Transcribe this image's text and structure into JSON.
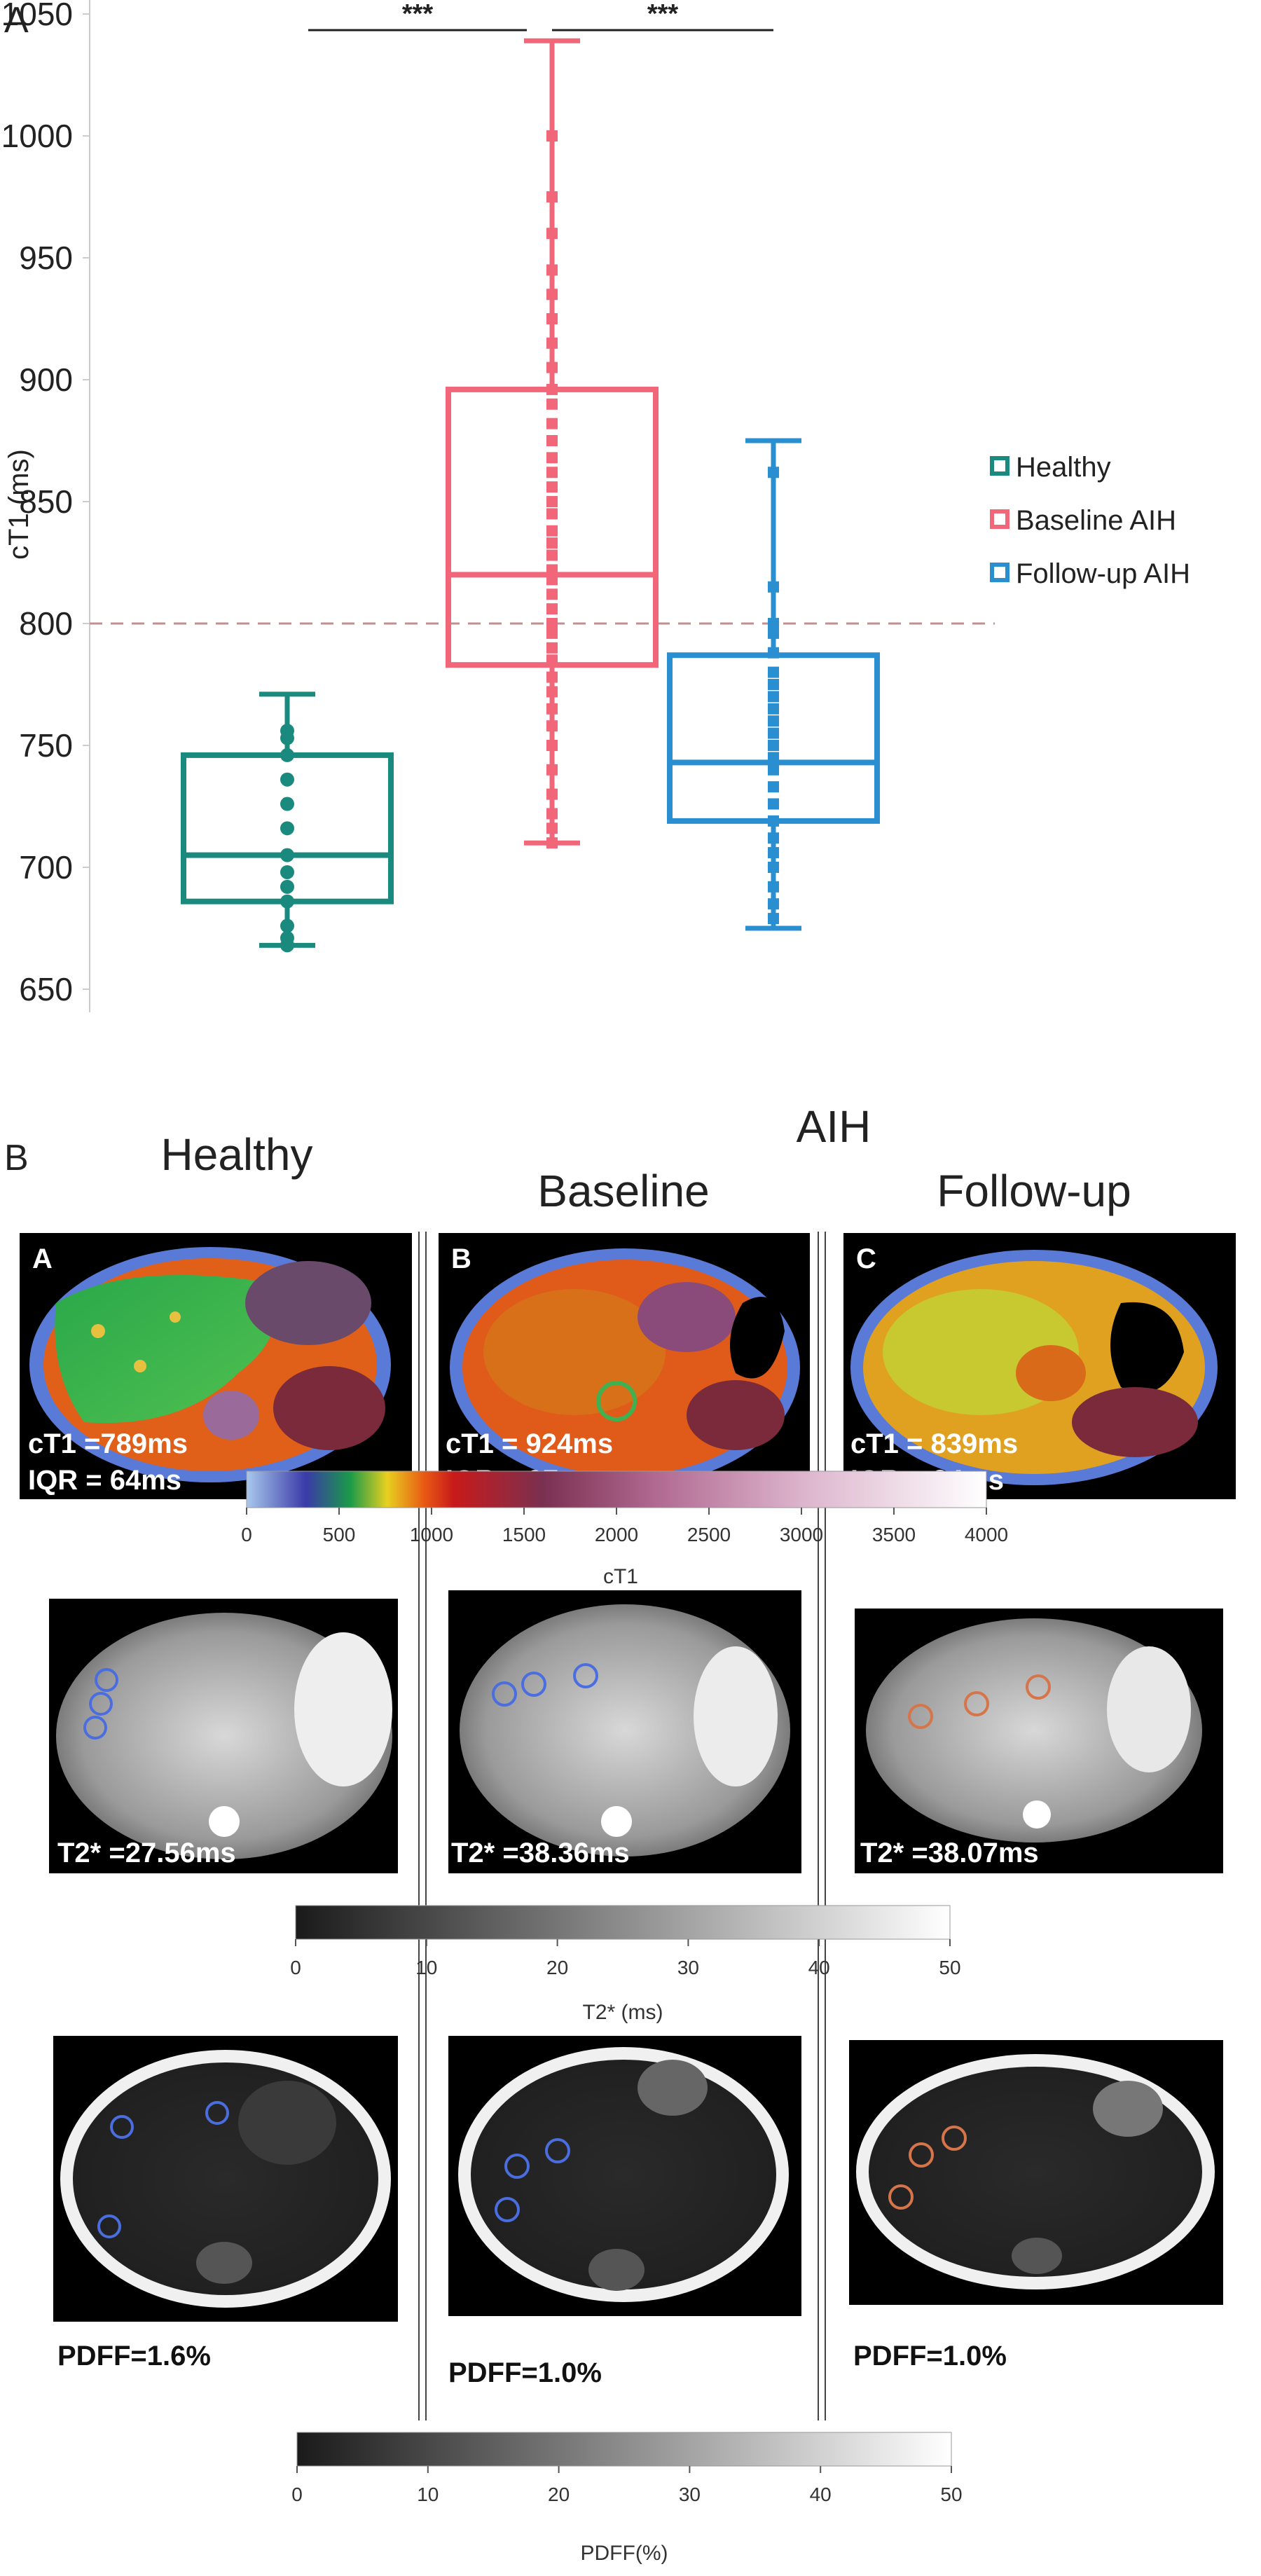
{
  "panel_a": {
    "letter": "A",
    "chart_data": {
      "type": "box",
      "ylabel": "cT1 (ms)",
      "ylim": [
        650,
        1050
      ],
      "yticks": [
        650,
        700,
        750,
        800,
        850,
        900,
        950,
        1000,
        1050
      ],
      "reference_line": 800,
      "grid": false,
      "legend_position": "right",
      "significance": [
        "***",
        "***"
      ],
      "series": [
        {
          "name": "Healthy",
          "color": "#1a8a7e",
          "whisker_low": 668,
          "q1": 686,
          "median": 705,
          "q3": 746,
          "whisker_high": 771,
          "points": [
            668,
            671,
            676,
            686,
            692,
            698,
            705,
            716,
            726,
            736,
            746,
            753,
            756
          ]
        },
        {
          "name": "Baseline AIH",
          "color": "#f2667a",
          "whisker_low": 710,
          "q1": 783,
          "median": 820,
          "q3": 896,
          "whisker_high": 1039,
          "points": [
            710,
            716,
            722,
            730,
            740,
            750,
            758,
            765,
            772,
            778,
            785,
            790,
            796,
            800,
            806,
            812,
            818,
            822,
            828,
            833,
            838,
            845,
            850,
            856,
            862,
            868,
            875,
            882,
            890,
            896,
            905,
            915,
            925,
            935,
            945,
            960,
            975,
            1000
          ]
        },
        {
          "name": "Follow-up AIH",
          "color": "#2a8fd0",
          "whisker_low": 675,
          "q1": 719,
          "median": 743,
          "q3": 787,
          "whisker_high": 875,
          "points": [
            679,
            685,
            692,
            700,
            706,
            712,
            719,
            726,
            733,
            740,
            745,
            750,
            755,
            760,
            765,
            770,
            775,
            780,
            788,
            796,
            800,
            815,
            862
          ]
        }
      ]
    }
  },
  "panel_b": {
    "letter": "B",
    "group_healthy": "Healthy",
    "group_aih": "AIH",
    "col_baseline": "Baseline",
    "col_followup": "Follow-up",
    "images": [
      {
        "letter": "A",
        "line1": "cT1 =789ms",
        "line2": "IQR = 64ms"
      },
      {
        "letter": "B",
        "line1": "cT1 = 924ms",
        "line2": "IQR = 97ms"
      },
      {
        "letter": "C",
        "line1": "cT1 = 839ms",
        "line2": "IQR = 84ms"
      }
    ],
    "ct1_colorbar": {
      "label": "cT1",
      "ticks": [
        "0",
        "500",
        "1000",
        "1500",
        "2000",
        "2500",
        "3000",
        "3500",
        "4000"
      ]
    },
    "t2_values": [
      "T2* =27.56ms",
      "T2* =38.36ms",
      "T2* =38.07ms"
    ],
    "t2_colorbar": {
      "label": "T2* (ms)",
      "ticks": [
        "0",
        "10",
        "20",
        "30",
        "40",
        "50"
      ]
    },
    "pdff_values": [
      "PDFF=1.6%",
      "PDFF=1.0%",
      "PDFF=1.0%"
    ],
    "pdff_colorbar": {
      "label": "PDFF(%)",
      "ticks": [
        "0",
        "10",
        "20",
        "30",
        "40",
        "50"
      ]
    },
    "roi_colors": {
      "healthy": "#4a6ee0",
      "baseline": "#4a6ee0",
      "followup": "#d6744a"
    }
  }
}
